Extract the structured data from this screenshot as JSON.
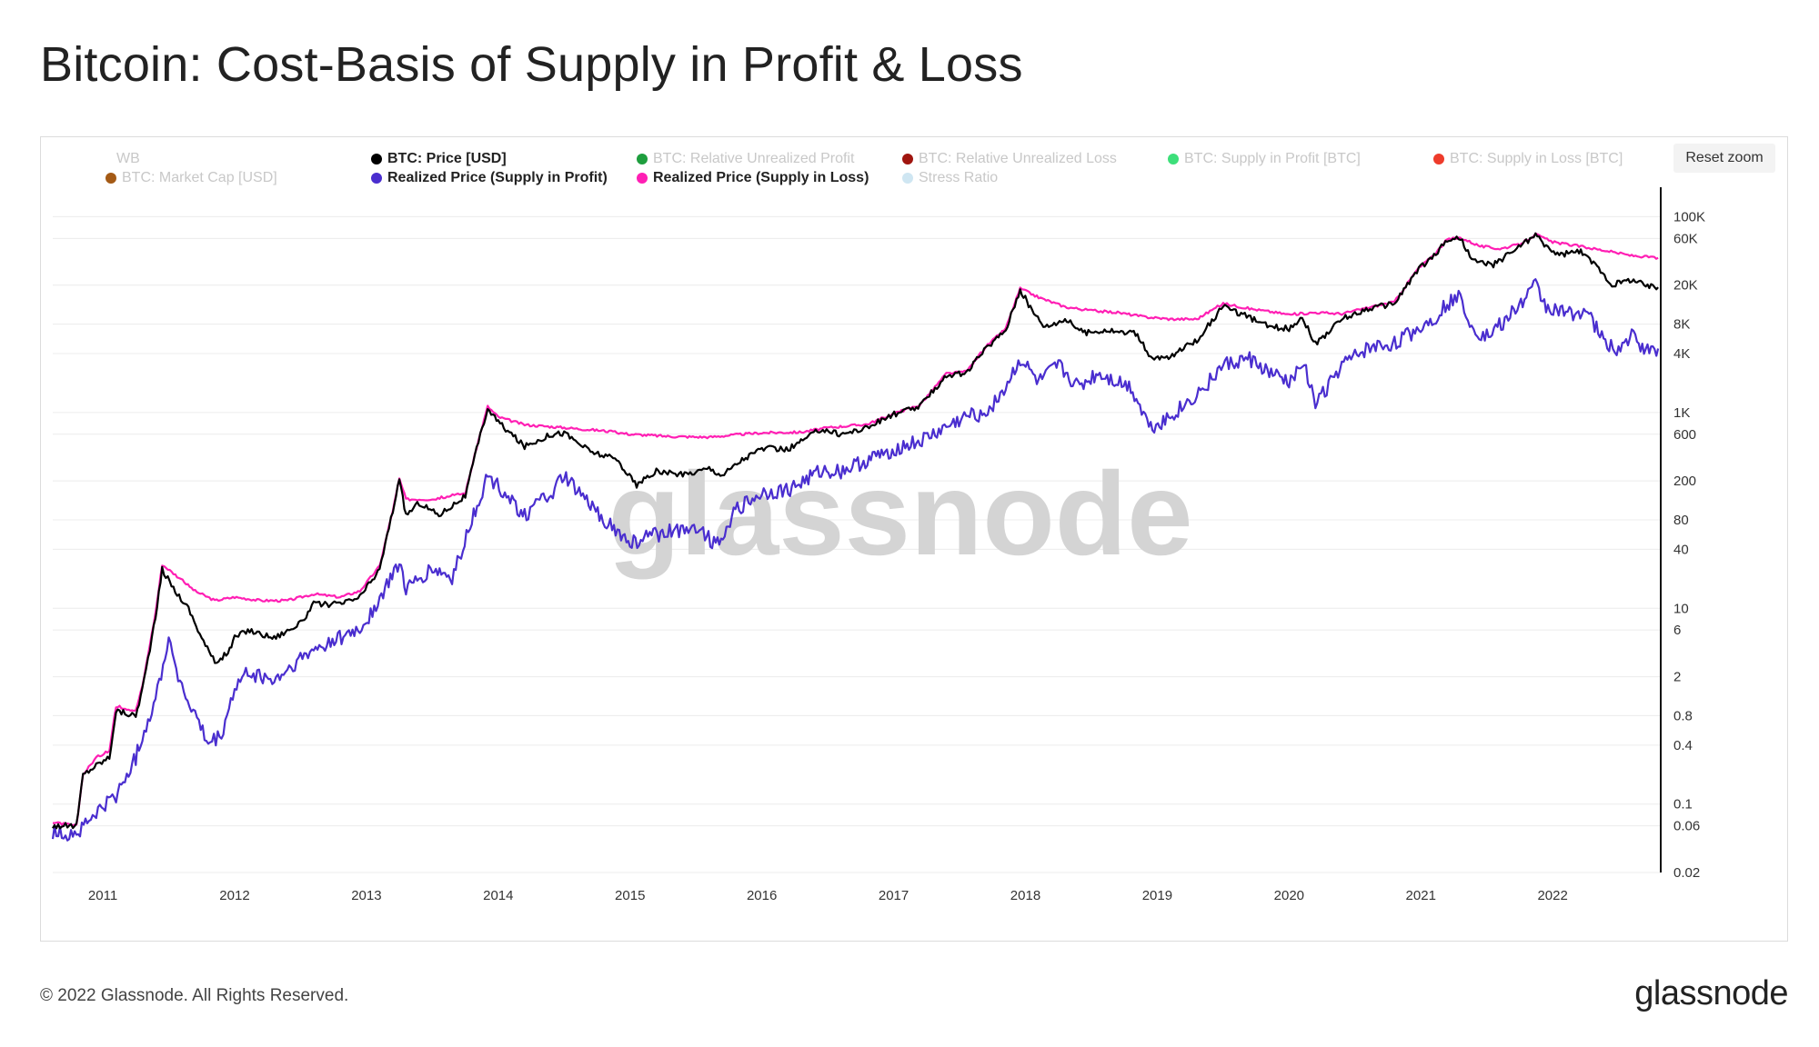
{
  "title": "Bitcoin: Cost-Basis of Supply in Profit & Loss",
  "reset_zoom": "Reset zoom",
  "footer": "© 2022 Glassnode. All Rights Reserved.",
  "brand": "glassnode",
  "watermark": "glassnode",
  "legend": [
    {
      "label": "WB",
      "color": "#c8c8c8",
      "visible": false
    },
    {
      "label": "BTC: Price [USD]",
      "color": "#000000",
      "visible": true
    },
    {
      "label": "BTC: Relative Unrealized Profit",
      "color": "#1e9e3e",
      "visible": false
    },
    {
      "label": "BTC: Relative Unrealized Loss",
      "color": "#a0150f",
      "visible": false
    },
    {
      "label": "BTC: Supply in Profit [BTC]",
      "color": "#3ddf7a",
      "visible": false
    },
    {
      "label": "BTC: Supply in Loss [BTC]",
      "color": "#ee3b2b",
      "visible": false
    },
    {
      "label": "BTC: Market Cap [USD]",
      "color": "#a45a15",
      "visible": false
    },
    {
      "label": "Realized Price (Supply in Profit)",
      "color": "#4a2ecf",
      "visible": true
    },
    {
      "label": "Realized Price (Supply in Loss)",
      "color": "#ff1fb4",
      "visible": true
    },
    {
      "label": "Stress Ratio",
      "color": "#cfe6f2",
      "visible": false
    }
  ],
  "chart_data": {
    "type": "line",
    "title": "Bitcoin: Cost-Basis of Supply in Profit & Loss",
    "y_scale": "log",
    "ylim": [
      0.02,
      200000
    ],
    "xlim": [
      2010.62,
      2022.82
    ],
    "x_ticks": [
      "2011",
      "2012",
      "2013",
      "2014",
      "2015",
      "2016",
      "2017",
      "2018",
      "2019",
      "2020",
      "2021",
      "2022"
    ],
    "y_ticks": [
      {
        "label": "100K",
        "value": 100000
      },
      {
        "label": "60K",
        "value": 60000
      },
      {
        "label": "20K",
        "value": 20000
      },
      {
        "label": "8K",
        "value": 8000
      },
      {
        "label": "4K",
        "value": 4000
      },
      {
        "label": "1K",
        "value": 1000
      },
      {
        "label": "600",
        "value": 600
      },
      {
        "label": "200",
        "value": 200
      },
      {
        "label": "80",
        "value": 80
      },
      {
        "label": "40",
        "value": 40
      },
      {
        "label": "10",
        "value": 10
      },
      {
        "label": "6",
        "value": 6
      },
      {
        "label": "2",
        "value": 2
      },
      {
        "label": "0.8",
        "value": 0.8
      },
      {
        "label": "0.4",
        "value": 0.4
      },
      {
        "label": "0.1",
        "value": 0.1
      },
      {
        "label": "0.06",
        "value": 0.06
      },
      {
        "label": "0.02",
        "value": 0.02
      }
    ],
    "series": [
      {
        "name": "BTC: Price [USD]",
        "color": "#000000",
        "points": [
          [
            2010.62,
            0.06
          ],
          [
            2010.8,
            0.06
          ],
          [
            2010.85,
            0.2
          ],
          [
            2010.95,
            0.25
          ],
          [
            2011.05,
            0.3
          ],
          [
            2011.1,
            0.9
          ],
          [
            2011.25,
            0.8
          ],
          [
            2011.3,
            1.5
          ],
          [
            2011.4,
            8
          ],
          [
            2011.45,
            25
          ],
          [
            2011.55,
            15
          ],
          [
            2011.65,
            10
          ],
          [
            2011.75,
            5
          ],
          [
            2011.85,
            2.8
          ],
          [
            2011.95,
            3.5
          ],
          [
            2012.0,
            5
          ],
          [
            2012.1,
            6
          ],
          [
            2012.3,
            5
          ],
          [
            2012.5,
            7
          ],
          [
            2012.6,
            11
          ],
          [
            2012.8,
            11
          ],
          [
            2012.95,
            13
          ],
          [
            2013.1,
            25
          ],
          [
            2013.2,
            100
          ],
          [
            2013.25,
            200
          ],
          [
            2013.3,
            90
          ],
          [
            2013.4,
            120
          ],
          [
            2013.55,
            90
          ],
          [
            2013.75,
            140
          ],
          [
            2013.85,
            500
          ],
          [
            2013.92,
            1100
          ],
          [
            2014.0,
            800
          ],
          [
            2014.1,
            600
          ],
          [
            2014.2,
            450
          ],
          [
            2014.4,
            600
          ],
          [
            2014.5,
            620
          ],
          [
            2014.7,
            400
          ],
          [
            2014.9,
            330
          ],
          [
            2015.05,
            180
          ],
          [
            2015.2,
            250
          ],
          [
            2015.4,
            230
          ],
          [
            2015.6,
            270
          ],
          [
            2015.7,
            230
          ],
          [
            2015.85,
            330
          ],
          [
            2016.0,
            430
          ],
          [
            2016.2,
            420
          ],
          [
            2016.45,
            680
          ],
          [
            2016.6,
            600
          ],
          [
            2016.8,
            700
          ],
          [
            2016.99,
            950
          ],
          [
            2017.2,
            1150
          ],
          [
            2017.4,
            2400
          ],
          [
            2017.55,
            2500
          ],
          [
            2017.7,
            4500
          ],
          [
            2017.85,
            7000
          ],
          [
            2017.96,
            18000
          ],
          [
            2018.05,
            11000
          ],
          [
            2018.15,
            7500
          ],
          [
            2018.3,
            9000
          ],
          [
            2018.45,
            6500
          ],
          [
            2018.6,
            7000
          ],
          [
            2018.85,
            6300
          ],
          [
            2018.95,
            3500
          ],
          [
            2019.1,
            3700
          ],
          [
            2019.3,
            5500
          ],
          [
            2019.5,
            12000
          ],
          [
            2019.65,
            10000
          ],
          [
            2019.85,
            7500
          ],
          [
            2020.0,
            7200
          ],
          [
            2020.1,
            9500
          ],
          [
            2020.2,
            5000
          ],
          [
            2020.4,
            9000
          ],
          [
            2020.6,
            11500
          ],
          [
            2020.8,
            13000
          ],
          [
            2020.97,
            28000
          ],
          [
            2021.1,
            40000
          ],
          [
            2021.2,
            58000
          ],
          [
            2021.3,
            60000
          ],
          [
            2021.4,
            35000
          ],
          [
            2021.55,
            32000
          ],
          [
            2021.7,
            45000
          ],
          [
            2021.87,
            65000
          ],
          [
            2021.95,
            50000
          ],
          [
            2022.05,
            40000
          ],
          [
            2022.2,
            45000
          ],
          [
            2022.35,
            30000
          ],
          [
            2022.45,
            20000
          ],
          [
            2022.6,
            23000
          ],
          [
            2022.72,
            19500
          ],
          [
            2022.8,
            19000
          ]
        ]
      },
      {
        "name": "Realized Price (Supply in Profit)",
        "color": "#4a2ecf",
        "points": [
          [
            2010.62,
            0.05
          ],
          [
            2010.8,
            0.05
          ],
          [
            2010.95,
            0.08
          ],
          [
            2011.1,
            0.12
          ],
          [
            2011.25,
            0.3
          ],
          [
            2011.3,
            0.5
          ],
          [
            2011.4,
            1.2
          ],
          [
            2011.5,
            5
          ],
          [
            2011.6,
            1.5
          ],
          [
            2011.7,
            0.8
          ],
          [
            2011.8,
            0.4
          ],
          [
            2011.9,
            0.5
          ],
          [
            2012.0,
            1.5
          ],
          [
            2012.1,
            2.2
          ],
          [
            2012.3,
            1.8
          ],
          [
            2012.5,
            3
          ],
          [
            2012.7,
            4.5
          ],
          [
            2012.95,
            6
          ],
          [
            2013.1,
            12
          ],
          [
            2013.25,
            30
          ],
          [
            2013.3,
            15
          ],
          [
            2013.5,
            25
          ],
          [
            2013.65,
            20
          ],
          [
            2013.8,
            80
          ],
          [
            2013.92,
            220
          ],
          [
            2014.05,
            150
          ],
          [
            2014.2,
            90
          ],
          [
            2014.4,
            150
          ],
          [
            2014.5,
            220
          ],
          [
            2014.7,
            110
          ],
          [
            2014.85,
            70
          ],
          [
            2015.0,
            45
          ],
          [
            2015.15,
            55
          ],
          [
            2015.3,
            60
          ],
          [
            2015.5,
            70
          ],
          [
            2015.65,
            45
          ],
          [
            2015.8,
            100
          ],
          [
            2016.0,
            150
          ],
          [
            2016.2,
            160
          ],
          [
            2016.45,
            250
          ],
          [
            2016.6,
            250
          ],
          [
            2016.8,
            320
          ],
          [
            2016.99,
            420
          ],
          [
            2017.2,
            500
          ],
          [
            2017.4,
            700
          ],
          [
            2017.55,
            900
          ],
          [
            2017.7,
            1000
          ],
          [
            2017.85,
            1800
          ],
          [
            2017.96,
            3500
          ],
          [
            2018.1,
            2000
          ],
          [
            2018.25,
            3000
          ],
          [
            2018.4,
            1800
          ],
          [
            2018.55,
            2500
          ],
          [
            2018.8,
            1800
          ],
          [
            2018.95,
            700
          ],
          [
            2019.1,
            900
          ],
          [
            2019.3,
            1500
          ],
          [
            2019.5,
            3000
          ],
          [
            2019.7,
            3500
          ],
          [
            2019.85,
            2500
          ],
          [
            2020.0,
            2000
          ],
          [
            2020.1,
            3500
          ],
          [
            2020.2,
            1200
          ],
          [
            2020.4,
            3000
          ],
          [
            2020.6,
            4500
          ],
          [
            2020.8,
            5000
          ],
          [
            2020.97,
            7000
          ],
          [
            2021.1,
            9000
          ],
          [
            2021.2,
            13000
          ],
          [
            2021.3,
            15000
          ],
          [
            2021.4,
            7000
          ],
          [
            2021.5,
            6000
          ],
          [
            2021.65,
            9000
          ],
          [
            2021.8,
            15000
          ],
          [
            2021.87,
            20000
          ],
          [
            2021.95,
            12000
          ],
          [
            2022.1,
            10000
          ],
          [
            2022.25,
            11000
          ],
          [
            2022.4,
            5000
          ],
          [
            2022.5,
            4500
          ],
          [
            2022.6,
            6000
          ],
          [
            2022.72,
            4200
          ],
          [
            2022.8,
            4500
          ]
        ]
      },
      {
        "name": "Realized Price (Supply in Loss)",
        "color": "#ff1fb4",
        "points": [
          [
            2010.62,
            0.065
          ],
          [
            2010.8,
            0.06
          ],
          [
            2010.85,
            0.2
          ],
          [
            2010.95,
            0.3
          ],
          [
            2011.05,
            0.35
          ],
          [
            2011.1,
            1.0
          ],
          [
            2011.25,
            0.9
          ],
          [
            2011.3,
            1.6
          ],
          [
            2011.4,
            9
          ],
          [
            2011.45,
            28
          ],
          [
            2011.55,
            22
          ],
          [
            2011.7,
            15
          ],
          [
            2011.85,
            12
          ],
          [
            2012.0,
            13
          ],
          [
            2012.2,
            12
          ],
          [
            2012.4,
            12
          ],
          [
            2012.6,
            14
          ],
          [
            2012.8,
            13
          ],
          [
            2012.95,
            15
          ],
          [
            2013.1,
            27
          ],
          [
            2013.2,
            100
          ],
          [
            2013.25,
            210
          ],
          [
            2013.3,
            130
          ],
          [
            2013.5,
            130
          ],
          [
            2013.75,
            150
          ],
          [
            2013.85,
            520
          ],
          [
            2013.92,
            1150
          ],
          [
            2014.0,
            900
          ],
          [
            2014.2,
            750
          ],
          [
            2014.5,
            700
          ],
          [
            2014.8,
            650
          ],
          [
            2015.0,
            600
          ],
          [
            2015.3,
            570
          ],
          [
            2015.6,
            560
          ],
          [
            2015.85,
            600
          ],
          [
            2016.0,
            620
          ],
          [
            2016.3,
            630
          ],
          [
            2016.5,
            700
          ],
          [
            2016.8,
            760
          ],
          [
            2016.99,
            960
          ],
          [
            2017.2,
            1200
          ],
          [
            2017.4,
            2500
          ],
          [
            2017.55,
            2600
          ],
          [
            2017.7,
            4700
          ],
          [
            2017.85,
            7200
          ],
          [
            2017.96,
            18500
          ],
          [
            2018.1,
            15000
          ],
          [
            2018.3,
            12000
          ],
          [
            2018.5,
            11000
          ],
          [
            2018.7,
            10500
          ],
          [
            2018.9,
            9500
          ],
          [
            2019.1,
            9000
          ],
          [
            2019.3,
            9000
          ],
          [
            2019.5,
            13000
          ],
          [
            2019.7,
            11500
          ],
          [
            2019.9,
            10500
          ],
          [
            2020.0,
            10000
          ],
          [
            2020.2,
            10500
          ],
          [
            2020.4,
            10200
          ],
          [
            2020.6,
            11800
          ],
          [
            2020.8,
            13500
          ],
          [
            2020.97,
            28500
          ],
          [
            2021.1,
            41000
          ],
          [
            2021.2,
            58500
          ],
          [
            2021.3,
            61000
          ],
          [
            2021.45,
            50000
          ],
          [
            2021.6,
            47000
          ],
          [
            2021.75,
            52000
          ],
          [
            2021.87,
            66000
          ],
          [
            2022.0,
            55000
          ],
          [
            2022.2,
            50000
          ],
          [
            2022.4,
            45000
          ],
          [
            2022.6,
            40000
          ],
          [
            2022.8,
            38000
          ]
        ]
      }
    ]
  }
}
